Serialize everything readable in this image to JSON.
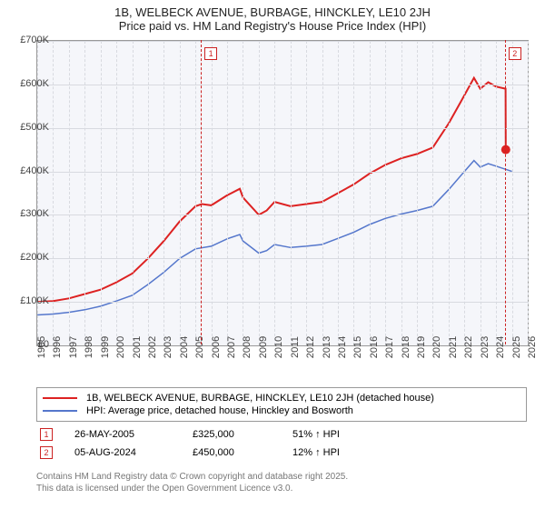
{
  "title": "1B, WELBECK AVENUE, BURBAGE, HINCKLEY, LE10 2JH",
  "subtitle": "Price paid vs. HM Land Registry's House Price Index (HPI)",
  "chart": {
    "type": "line",
    "background_color": "#f5f6fa",
    "grid_color": "#d8dae0",
    "border_color": "#999999",
    "ylim": [
      0,
      700000
    ],
    "ytick_step": 100000,
    "yticks": [
      "£0",
      "£100K",
      "£200K",
      "£300K",
      "£400K",
      "£500K",
      "£600K",
      "£700K"
    ],
    "xlim": [
      1995,
      2026
    ],
    "xticks": [
      1995,
      1996,
      1997,
      1998,
      1999,
      2000,
      2001,
      2002,
      2003,
      2004,
      2005,
      2006,
      2007,
      2008,
      2009,
      2010,
      2011,
      2012,
      2013,
      2014,
      2015,
      2016,
      2017,
      2018,
      2019,
      2020,
      2021,
      2022,
      2023,
      2024,
      2025,
      2026
    ],
    "series": [
      {
        "name": "1B, WELBECK AVENUE, BURBAGE, HINCKLEY, LE10 2JH (detached house)",
        "color": "#dd2222",
        "line_width": 2,
        "data": [
          [
            1995,
            100000
          ],
          [
            1996,
            102000
          ],
          [
            1997,
            108000
          ],
          [
            1998,
            118000
          ],
          [
            1999,
            128000
          ],
          [
            2000,
            145000
          ],
          [
            2001,
            165000
          ],
          [
            2002,
            200000
          ],
          [
            2003,
            240000
          ],
          [
            2004,
            285000
          ],
          [
            2005,
            320000
          ],
          [
            2005.4,
            325000
          ],
          [
            2006,
            322000
          ],
          [
            2007,
            345000
          ],
          [
            2007.8,
            360000
          ],
          [
            2008,
            340000
          ],
          [
            2009,
            300000
          ],
          [
            2009.5,
            310000
          ],
          [
            2010,
            330000
          ],
          [
            2011,
            320000
          ],
          [
            2012,
            325000
          ],
          [
            2013,
            330000
          ],
          [
            2014,
            350000
          ],
          [
            2015,
            370000
          ],
          [
            2016,
            395000
          ],
          [
            2017,
            415000
          ],
          [
            2018,
            430000
          ],
          [
            2019,
            440000
          ],
          [
            2020,
            455000
          ],
          [
            2021,
            510000
          ],
          [
            2022,
            575000
          ],
          [
            2022.6,
            615000
          ],
          [
            2023,
            590000
          ],
          [
            2023.5,
            605000
          ],
          [
            2024,
            595000
          ],
          [
            2024.6,
            590000
          ],
          [
            2024.61,
            450000
          ]
        ],
        "end_marker": {
          "x": 2024.61,
          "y": 450000,
          "style": "circle",
          "size": 5
        }
      },
      {
        "name": "HPI: Average price, detached house, Hinckley and Bosworth",
        "color": "#5577cc",
        "line_width": 1.5,
        "data": [
          [
            1995,
            70000
          ],
          [
            1996,
            72000
          ],
          [
            1997,
            76000
          ],
          [
            1998,
            82000
          ],
          [
            1999,
            90000
          ],
          [
            2000,
            102000
          ],
          [
            2001,
            115000
          ],
          [
            2002,
            140000
          ],
          [
            2003,
            168000
          ],
          [
            2004,
            200000
          ],
          [
            2005,
            222000
          ],
          [
            2006,
            228000
          ],
          [
            2007,
            245000
          ],
          [
            2007.8,
            255000
          ],
          [
            2008,
            240000
          ],
          [
            2009,
            212000
          ],
          [
            2009.5,
            218000
          ],
          [
            2010,
            232000
          ],
          [
            2011,
            225000
          ],
          [
            2012,
            228000
          ],
          [
            2013,
            232000
          ],
          [
            2014,
            246000
          ],
          [
            2015,
            260000
          ],
          [
            2016,
            278000
          ],
          [
            2017,
            292000
          ],
          [
            2018,
            302000
          ],
          [
            2019,
            310000
          ],
          [
            2020,
            320000
          ],
          [
            2021,
            358000
          ],
          [
            2022,
            400000
          ],
          [
            2022.6,
            425000
          ],
          [
            2023,
            410000
          ],
          [
            2023.5,
            418000
          ],
          [
            2024,
            412000
          ],
          [
            2025,
            400000
          ]
        ]
      }
    ],
    "markers": [
      {
        "id": "1",
        "x": 2005.4,
        "box_y": 52
      },
      {
        "id": "2",
        "x": 2024.61,
        "box_y": 52
      }
    ]
  },
  "annotations": [
    {
      "id": "1",
      "date": "26-MAY-2005",
      "price": "£325,000",
      "hpi": "51% ↑ HPI"
    },
    {
      "id": "2",
      "date": "05-AUG-2024",
      "price": "£450,000",
      "hpi": "12% ↑ HPI"
    }
  ],
  "footer": {
    "line1": "Contains HM Land Registry data © Crown copyright and database right 2025.",
    "line2": "This data is licensed under the Open Government Licence v3.0."
  }
}
